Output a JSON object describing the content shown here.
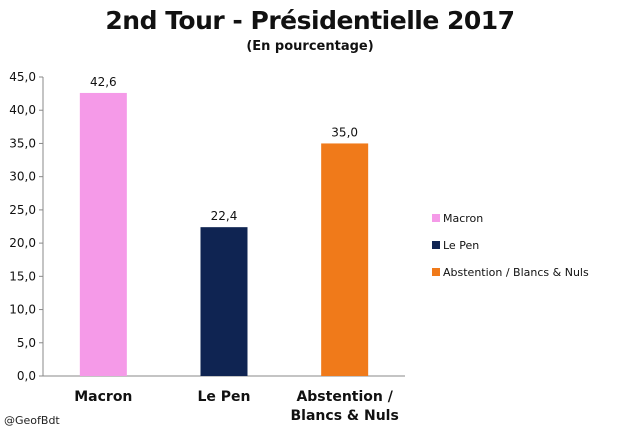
{
  "chart_data": {
    "type": "bar",
    "title": "2nd Tour - Présidentielle 2017",
    "subtitle": "(En pourcentage)",
    "categories": [
      "Macron",
      "Le Pen",
      "Abstention / Blancs & Nuls"
    ],
    "category_lines": [
      [
        "Macron"
      ],
      [
        "Le Pen"
      ],
      [
        "Abstention /",
        "Blancs & Nuls"
      ]
    ],
    "values": [
      42.6,
      22.4,
      35.0
    ],
    "value_labels": [
      "42,6",
      "22,4",
      "35,0"
    ],
    "colors": [
      "#f59ae8",
      "#0f2452",
      "#f07a1a"
    ],
    "ylim": [
      0,
      45
    ],
    "yticks": [
      0,
      5,
      10,
      15,
      20,
      25,
      30,
      35,
      40,
      45
    ],
    "ytick_labels": [
      "0,0",
      "5,0",
      "10,0",
      "15,0",
      "20,0",
      "25,0",
      "30,0",
      "35,0",
      "40,0",
      "45,0"
    ],
    "grid": false,
    "legend": {
      "position": "right",
      "entries": [
        "Macron",
        "Le Pen",
        "Abstention / Blancs & Nuls"
      ]
    }
  },
  "credit": "@GeofBdt"
}
